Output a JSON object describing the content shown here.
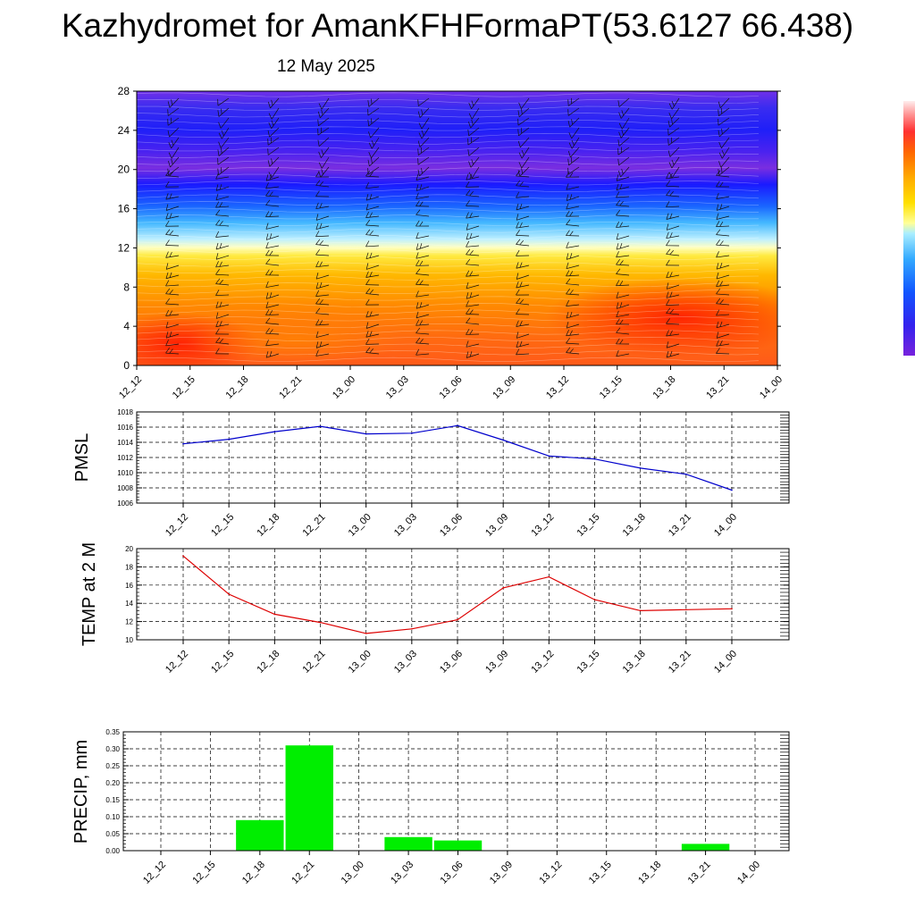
{
  "header": {
    "title": "Kazhydromet for AmanKFHFormaPT(53.6127 66.438)",
    "subtitle": "12 May 2025"
  },
  "chart_data": [
    {
      "type": "heatmap",
      "title": "",
      "xlabel": "",
      "ylabel": "",
      "x_ticks": [
        "12_12",
        "12_15",
        "12_18",
        "12_21",
        "13_00",
        "13_03",
        "13_06",
        "13_09",
        "13_12",
        "13_15",
        "13_18",
        "13_21",
        "14_00"
      ],
      "y_ticks": [
        0,
        4,
        8,
        12,
        16,
        20,
        24,
        28
      ],
      "ylim": [
        0,
        28
      ],
      "colorbar": {
        "stops": [
          "#ffeeee",
          "#ff9999",
          "#ff3030",
          "#ff6600",
          "#ffaa00",
          "#ffe000",
          "#ffff99",
          "#aaeeff",
          "#33aaff",
          "#1155ff",
          "#3322ee",
          "#7722dd"
        ]
      },
      "wind_barbs": true
    },
    {
      "type": "line",
      "title": "",
      "ylabel": "PMSL",
      "x": [
        "12_12",
        "12_15",
        "12_18",
        "12_21",
        "13_00",
        "13_03",
        "13_06",
        "13_09",
        "13_12",
        "13_15",
        "13_18",
        "13_21",
        "14_00"
      ],
      "y": [
        1013.8,
        1014.4,
        1015.4,
        1016.1,
        1015.1,
        1015.2,
        1016.2,
        1014.3,
        1012.2,
        1011.8,
        1010.6,
        1009.8,
        1007.7
      ],
      "color": "#0000cc",
      "ylim": [
        1006,
        1018
      ],
      "y_ticks": [
        1006,
        1008,
        1010,
        1012,
        1014,
        1016,
        1018
      ],
      "grid": true
    },
    {
      "type": "line",
      "title": "",
      "ylabel": "TEMP at 2 M",
      "x": [
        "12_12",
        "12_15",
        "12_18",
        "12_21",
        "13_00",
        "13_03",
        "13_06",
        "13_09",
        "13_12",
        "13_15",
        "13_18",
        "13_21",
        "14_00"
      ],
      "y": [
        19.2,
        15.0,
        12.8,
        11.9,
        10.7,
        11.2,
        12.2,
        15.7,
        16.9,
        14.4,
        13.2,
        13.3,
        13.4
      ],
      "color": "#dd0000",
      "ylim": [
        10,
        20
      ],
      "y_ticks": [
        10,
        12,
        14,
        16,
        18,
        20
      ],
      "grid": true
    },
    {
      "type": "bar",
      "title": "",
      "ylabel": "PRECIP, mm",
      "categories": [
        "12_12",
        "12_15",
        "12_18",
        "12_21",
        "13_00",
        "13_03",
        "13_06",
        "13_09",
        "13_12",
        "13_15",
        "13_18",
        "13_21",
        "14_00"
      ],
      "values": [
        0,
        0,
        0.09,
        0.31,
        0,
        0.04,
        0.03,
        0,
        0,
        0,
        0,
        0.02,
        0
      ],
      "color": "#00ee00",
      "ylim": [
        0,
        0.35
      ],
      "y_ticks": [
        "0.00",
        "0.05",
        "0.10",
        "0.15",
        "0.20",
        "0.25",
        "0.30",
        "0.35"
      ],
      "grid": true
    }
  ]
}
